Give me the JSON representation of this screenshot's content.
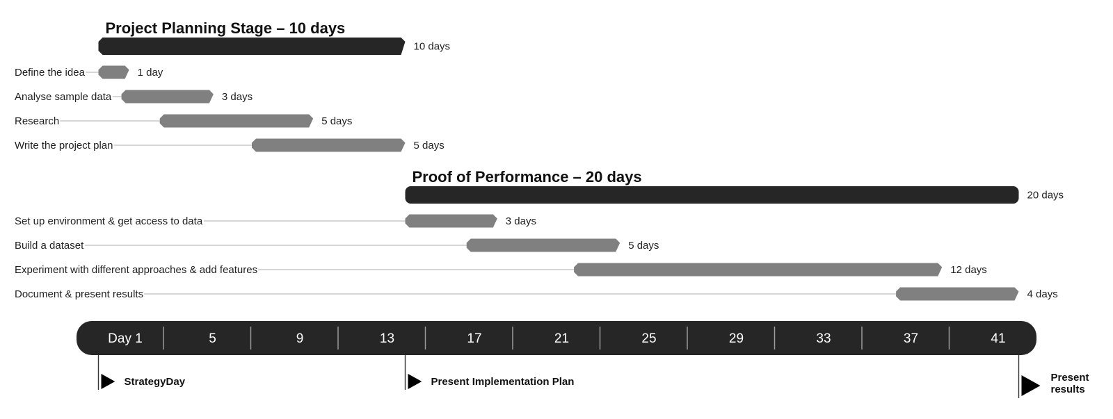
{
  "chart_data": {
    "type": "gantt",
    "x_unit": "day",
    "x_range": [
      1,
      44
    ],
    "colors": {
      "stage_bar": "#262626",
      "task_bar": "#808080",
      "leader_line": "#c8c8c8",
      "timeline": "#262626"
    },
    "stages": [
      {
        "title": "Project Planning Stage – 10 days",
        "start": 1,
        "duration": 10,
        "duration_label": "10 days",
        "tasks": [
          {
            "label": "Define the idea",
            "start": 1,
            "duration": 1,
            "duration_label": "1 day"
          },
          {
            "label": "Analyse sample data",
            "start": 1.75,
            "duration": 3,
            "duration_label": "3 days"
          },
          {
            "label": "Research",
            "start": 3,
            "duration": 5,
            "duration_label": "5 days"
          },
          {
            "label": "Write the project plan",
            "start": 6,
            "duration": 5,
            "duration_label": "5 days"
          }
        ]
      },
      {
        "title": "Proof of Performance – 20 days",
        "start": 11,
        "duration": 20,
        "duration_label": "20 days",
        "tasks": [
          {
            "label": "Set up environment & get access to data",
            "start": 11,
            "duration": 3,
            "duration_label": "3 days"
          },
          {
            "label": "Build a dataset",
            "start": 13,
            "duration": 5,
            "duration_label": "5 days"
          },
          {
            "label": "Experiment with different approaches & add features",
            "start": 16.5,
            "duration": 12,
            "duration_label": "12 days"
          },
          {
            "label": "Document & present results",
            "start": 27,
            "duration": 4,
            "duration_label": "4 days"
          }
        ]
      }
    ],
    "timeline_ticks": [
      "Day 1",
      "5",
      "9",
      "13",
      "17",
      "21",
      "25",
      "29",
      "33",
      "37",
      "41"
    ],
    "milestones": [
      {
        "label": "StrategyDay",
        "day": 1
      },
      {
        "label": "Present Implementation Plan",
        "day": 11
      },
      {
        "label": "Present results",
        "day": 31
      }
    ]
  }
}
